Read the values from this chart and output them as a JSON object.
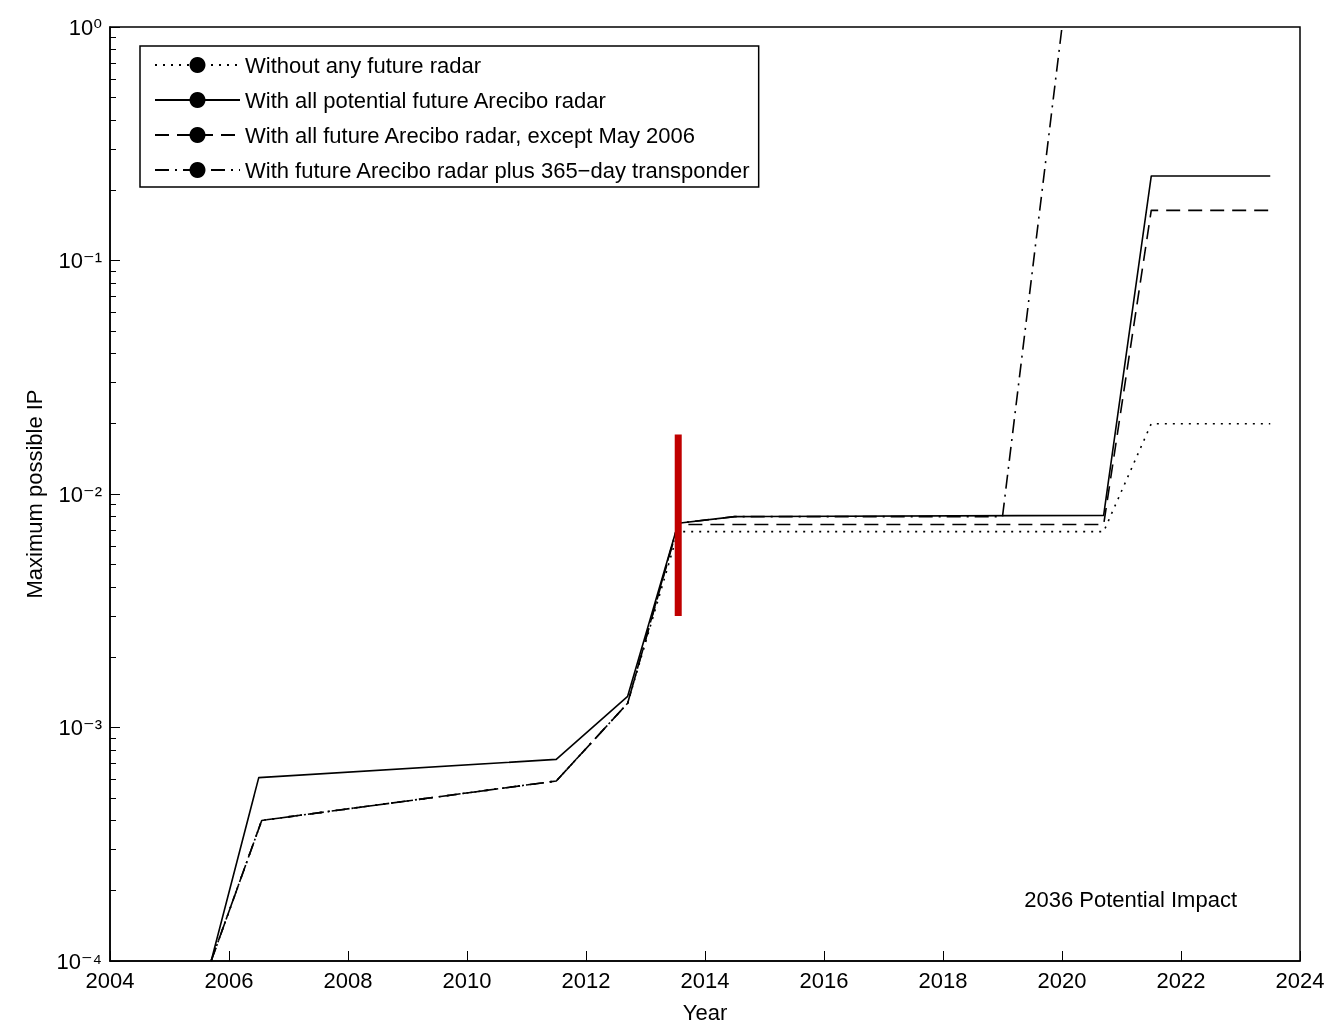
{
  "chart_data": {
    "type": "line",
    "xlabel": "Year",
    "ylabel": "Maximum possible IP",
    "log": "y",
    "grid": false,
    "legend": "top left",
    "marker": "none",
    "xlim": [
      2004,
      2024
    ],
    "xticks": [
      2004,
      2006,
      2008,
      2010,
      2012,
      2014,
      2016,
      2018,
      2020,
      2022,
      2024
    ],
    "ylim": [
      0.0001,
      1
    ],
    "yticks": [
      {
        "value": 0.0001,
        "label": "10⁻⁴"
      },
      {
        "value": 0.001,
        "label": "10⁻³"
      },
      {
        "value": 0.01,
        "label": "10⁻²"
      },
      {
        "value": 0.1,
        "label": "10⁻¹"
      },
      {
        "value": 1,
        "label": "10⁰"
      }
    ],
    "annotations": [
      "2036 Potential Impact"
    ],
    "series": [
      {
        "name": "Without any future radar",
        "color": "#000000",
        "line_style": "dotted",
        "x": [
          2005.7,
          2006.55,
          2011.5,
          2012.7,
          2013.55,
          2020.7,
          2021.5,
          2023.5
        ],
        "values": [
          0.0001,
          0.0004,
          0.00059,
          0.00127,
          0.0069,
          0.0069,
          0.02,
          0.02
        ]
      },
      {
        "name": "With all potential future Arecibo radar",
        "color": "#000000",
        "line_style": "solid",
        "x": [
          2005.7,
          2006.5,
          2011.5,
          2012.7,
          2013.55,
          2014.5,
          2020.7,
          2021.5,
          2023.5
        ],
        "values": [
          0.0001,
          0.00061,
          0.00073,
          0.00136,
          0.0075,
          0.008,
          0.0081,
          0.23,
          0.23
        ]
      },
      {
        "name": "With all future Arecibo radar, except May 2006",
        "color": "#000000",
        "line_style": "dashed",
        "x": [
          2005.7,
          2006.55,
          2011.5,
          2012.7,
          2013.55,
          2020.7,
          2021.5,
          2023.5
        ],
        "values": [
          0.0001,
          0.0004,
          0.00059,
          0.00127,
          0.0074,
          0.0074,
          0.164,
          0.164
        ]
      },
      {
        "name": "With future Arecibo radar plus 365−day transponder",
        "color": "#000000",
        "line_style": "dashdot",
        "x": [
          2005.7,
          2006.55,
          2011.5,
          2012.7,
          2013.55,
          2014.5,
          2019.0,
          2020.0
        ],
        "values": [
          0.0001,
          0.0004,
          0.00059,
          0.00127,
          0.0075,
          0.008,
          0.008,
          1
        ]
      },
      {
        "type": "line",
        "color": "#c00000",
        "line_style": "solid",
        "x": [
          2013.55,
          2013.55
        ],
        "values": [
          0.018,
          0.003
        ]
      }
    ]
  }
}
